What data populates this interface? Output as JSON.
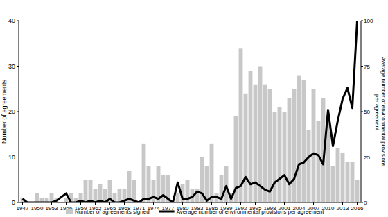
{
  "chart_data": {
    "type": "bar",
    "ylabel": "Number of agreements",
    "y2label": "Average number of environmental provisions per agreement",
    "categories": [
      "1947",
      null,
      null,
      "1950",
      null,
      null,
      "1953",
      null,
      null,
      "1956",
      null,
      null,
      "1959",
      null,
      null,
      "1962",
      null,
      null,
      "1965",
      null,
      null,
      "1968",
      null,
      null,
      "1971",
      null,
      null,
      "1974",
      null,
      null,
      "1977",
      null,
      null,
      "1980",
      null,
      null,
      "1983",
      null,
      null,
      "1986",
      null,
      null,
      "1989",
      null,
      null,
      "1992",
      null,
      null,
      "1995",
      null,
      null,
      "1998",
      null,
      null,
      "2001",
      null,
      null,
      "2004",
      null,
      null,
      "2007",
      null,
      null,
      "2010",
      null,
      null,
      "2013",
      null,
      null,
      "2016"
    ],
    "ylim": [
      0,
      40
    ],
    "yticks": [
      0,
      10,
      20,
      30,
      40
    ],
    "y2lim": [
      0,
      100
    ],
    "y2ticks": [
      0,
      25,
      50,
      75,
      100
    ],
    "legend": "bottom",
    "series": [
      {
        "name": "Number of agreements signed",
        "type": "bar",
        "color": "#c8c8c8",
        "values": [
          1,
          0,
          0,
          2,
          1,
          1,
          2,
          1,
          0,
          1,
          2,
          1,
          2,
          5,
          5,
          3,
          4,
          3,
          5,
          2,
          3,
          3,
          7,
          5,
          0,
          13,
          8,
          5,
          8,
          6,
          6,
          0,
          2,
          4,
          5,
          3,
          3,
          10,
          8,
          13,
          2,
          6,
          8,
          2,
          19,
          34,
          24,
          29,
          26,
          30,
          26,
          25,
          20,
          21,
          20,
          23,
          25,
          28,
          27,
          16,
          25,
          18,
          23,
          19,
          8,
          12,
          11,
          9,
          9,
          5
        ]
      },
      {
        "name": "Average number of environmental provisions per agreement",
        "type": "line",
        "color": "#000000",
        "axis": "y2",
        "values": [
          2,
          0,
          0,
          0,
          0,
          0,
          0,
          1,
          3,
          5,
          0,
          0,
          1,
          0,
          1,
          0,
          1,
          0,
          2,
          0,
          0,
          1,
          2,
          1,
          0,
          2,
          2,
          3,
          2,
          4,
          2,
          0,
          11,
          2,
          2,
          3,
          6,
          5,
          1,
          3,
          3,
          2,
          9,
          2,
          8,
          9,
          14,
          10,
          11,
          9,
          7,
          6,
          11,
          13,
          15,
          10,
          13,
          21,
          22,
          25,
          27,
          26,
          21,
          51,
          31,
          45,
          57,
          63,
          52,
          100
        ]
      }
    ]
  }
}
